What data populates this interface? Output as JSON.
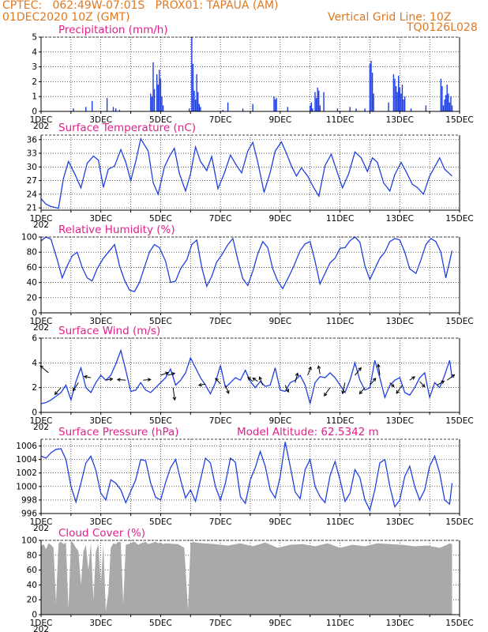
{
  "header": {
    "left1": "CPTEC:   062:49W-07:01S   PROX01: TAPAUA (AM)",
    "left2": "01DEC2020 10Z (GMT)",
    "right1": "Vertical Grid Line: 10Z",
    "right2": "TQ0126L028"
  },
  "x_ticks": [
    "1DEC",
    "3DEC",
    "5DEC",
    "7DEC",
    "9DEC",
    "11DEC",
    "13DEC",
    "15DEC"
  ],
  "year_stub": "202",
  "colors": {
    "header": "#e07820",
    "title": "#e0208a",
    "series": "#2040e0",
    "cloud": "#a9a9a9",
    "arrow": "#000000"
  },
  "chart_data": [
    {
      "type": "bar",
      "title": "Precipitation (mm/h)",
      "ylim": [
        0,
        5
      ],
      "yticks": [
        0,
        1,
        2,
        3,
        4,
        5
      ],
      "x_unit": "hours since 01DEC2020 10Z",
      "bars": [
        [
          26,
          0.2
        ],
        [
          36,
          0.3
        ],
        [
          41,
          0.7
        ],
        [
          53,
          0.9
        ],
        [
          58,
          0.3
        ],
        [
          60,
          0.2
        ],
        [
          63,
          0.1
        ],
        [
          88,
          1.2
        ],
        [
          89,
          1.0
        ],
        [
          90,
          3.3
        ],
        [
          91,
          1.5
        ],
        [
          93,
          2.5
        ],
        [
          94,
          1.8
        ],
        [
          95,
          2.8
        ],
        [
          96,
          2.2
        ],
        [
          97,
          1.0
        ],
        [
          98,
          0.4
        ],
        [
          119,
          0.2
        ],
        [
          121,
          5.0
        ],
        [
          122,
          3.2
        ],
        [
          123,
          1.4
        ],
        [
          124,
          0.8
        ],
        [
          125,
          2.5
        ],
        [
          126,
          1.3
        ],
        [
          127,
          0.5
        ],
        [
          128,
          0.3
        ],
        [
          146,
          0.1
        ],
        [
          150,
          0.6
        ],
        [
          162,
          0.2
        ],
        [
          170,
          0.5
        ],
        [
          187,
          1.0
        ],
        [
          188,
          0.8
        ],
        [
          189,
          0.9
        ],
        [
          198,
          0.3
        ],
        [
          216,
          0.4
        ],
        [
          217,
          0.6
        ],
        [
          218,
          0.2
        ],
        [
          220,
          1.3
        ],
        [
          221,
          0.9
        ],
        [
          222,
          1.6
        ],
        [
          223,
          1.4
        ],
        [
          224,
          0.4
        ],
        [
          227,
          1.3
        ],
        [
          238,
          0.2
        ],
        [
          248,
          0.3
        ],
        [
          253,
          0.2
        ],
        [
          260,
          0.2
        ],
        [
          264,
          3.2
        ],
        [
          265,
          3.4
        ],
        [
          266,
          2.6
        ],
        [
          267,
          1.2
        ],
        [
          279,
          0.6
        ],
        [
          283,
          2.5
        ],
        [
          284,
          2.2
        ],
        [
          285,
          1.7
        ],
        [
          286,
          1.3
        ],
        [
          287,
          2.4
        ],
        [
          288,
          1.6
        ],
        [
          289,
          1.2
        ],
        [
          290,
          1.8
        ],
        [
          291,
          0.8
        ],
        [
          292,
          1.0
        ],
        [
          297,
          0.2
        ],
        [
          309,
          0.4
        ],
        [
          321,
          2.2
        ],
        [
          322,
          1.7
        ],
        [
          323,
          0.4
        ],
        [
          324,
          0.8
        ],
        [
          325,
          1.1
        ],
        [
          326,
          1.8
        ],
        [
          327,
          1.2
        ],
        [
          328,
          0.6
        ],
        [
          329,
          1.0
        ],
        [
          330,
          0.4
        ]
      ]
    },
    {
      "type": "line",
      "title": "Surface Temperature (nC)",
      "ylim": [
        20.5,
        37
      ],
      "yticks": [
        21,
        24,
        27,
        30,
        33,
        36
      ],
      "x": [
        0,
        4,
        8,
        14,
        18,
        22,
        27,
        32,
        37,
        42,
        46,
        50,
        54,
        59,
        64,
        68,
        72,
        76,
        80,
        86,
        90,
        94,
        99,
        103,
        107,
        111,
        116,
        120,
        124,
        128,
        133,
        137,
        142,
        147,
        152,
        157,
        161,
        166,
        170,
        174,
        179,
        184,
        188,
        193,
        197,
        201,
        205,
        209,
        214,
        219,
        223,
        228,
        233,
        237,
        242,
        247,
        252,
        257,
        262,
        266,
        270,
        275,
        280,
        284,
        289,
        293,
        298,
        302,
        307,
        312,
        316,
        320,
        324,
        330
      ],
      "y": [
        23,
        21.8,
        21.3,
        20.9,
        27.5,
        31.2,
        28.5,
        25.4,
        30.8,
        32.4,
        31.5,
        25.5,
        29.5,
        30.2,
        33.8,
        31,
        27,
        31.2,
        36.2,
        33.5,
        26.5,
        24,
        30,
        32.3,
        34.1,
        28.6,
        24.7,
        28.5,
        34.4,
        31.2,
        29.2,
        32.3,
        25.2,
        28.5,
        32.6,
        30.3,
        28.7,
        33.5,
        35.4,
        31,
        24.4,
        28.8,
        33.5,
        35.5,
        33,
        30.2,
        28,
        29.8,
        28,
        25.4,
        23.6,
        30.3,
        32.8,
        29.5,
        25.4,
        28.5,
        33.3,
        32,
        29,
        32,
        31,
        26.5,
        24.7,
        28.3,
        31,
        29,
        26.2,
        25.5,
        24,
        28,
        30,
        32,
        29.5,
        28
      ]
    },
    {
      "type": "line",
      "title": "Relative Humidity (%)",
      "ylim": [
        0,
        100
      ],
      "yticks": [
        0,
        20,
        40,
        60,
        80,
        100
      ],
      "x": [
        0,
        4,
        8,
        13,
        17,
        21,
        25,
        29,
        33,
        37,
        41,
        45,
        50,
        55,
        59,
        63,
        67,
        71,
        75,
        79,
        83,
        87,
        91,
        95,
        100,
        104,
        108,
        112,
        117,
        121,
        125,
        129,
        133,
        137,
        141,
        145,
        150,
        154,
        158,
        162,
        166,
        170,
        174,
        178,
        182,
        186,
        190,
        194,
        199,
        203,
        208,
        212,
        216,
        220,
        224,
        228,
        232,
        236,
        240,
        244,
        248,
        252,
        256,
        260,
        264,
        268,
        272,
        276,
        280,
        284,
        288,
        292,
        296,
        301,
        305,
        309,
        313,
        317,
        321,
        325,
        330
      ],
      "y": [
        95,
        100,
        97,
        70,
        46,
        62,
        75,
        80,
        60,
        46,
        42,
        58,
        72,
        82,
        90,
        62,
        43,
        30,
        28,
        40,
        60,
        80,
        90,
        86,
        68,
        40,
        42,
        58,
        70,
        90,
        96,
        60,
        35,
        48,
        67,
        76,
        90,
        98,
        70,
        45,
        36,
        55,
        78,
        94,
        86,
        58,
        42,
        32,
        48,
        62,
        82,
        91,
        94,
        68,
        38,
        52,
        66,
        72,
        85,
        86,
        95,
        100,
        93,
        62,
        44,
        58,
        72,
        80,
        94,
        98,
        96,
        80,
        58,
        52,
        70,
        90,
        98,
        94,
        80,
        46,
        82
      ]
    },
    {
      "type": "line",
      "title": "Surface Wind (m/s)",
      "ylim": [
        0,
        6
      ],
      "yticks": [
        0,
        2,
        4,
        6
      ],
      "x": [
        0,
        4,
        8,
        12,
        16,
        20,
        24,
        28,
        32,
        36,
        40,
        44,
        48,
        52,
        56,
        60,
        64,
        68,
        72,
        76,
        80,
        84,
        88,
        92,
        96,
        100,
        104,
        108,
        112,
        116,
        120,
        124,
        128,
        132,
        136,
        140,
        144,
        148,
        152,
        156,
        160,
        164,
        168,
        172,
        176,
        180,
        184,
        188,
        192,
        196,
        200,
        204,
        208,
        212,
        216,
        220,
        224,
        228,
        232,
        236,
        240,
        244,
        248,
        252,
        256,
        260,
        264,
        268,
        272,
        276,
        280,
        284,
        288,
        292,
        296,
        300,
        304,
        308,
        312,
        316,
        320,
        324,
        328,
        330
      ],
      "y": [
        0.7,
        0.8,
        1.0,
        1.3,
        1.6,
        2.2,
        1.0,
        2.5,
        3.6,
        2.0,
        1.6,
        2.4,
        3.0,
        2.6,
        3.0,
        3.9,
        5.0,
        3.4,
        1.7,
        1.8,
        2.4,
        1.8,
        1.6,
        2.0,
        2.4,
        2.8,
        3.5,
        2.2,
        2.6,
        3.2,
        4.4,
        3.6,
        2.8,
        2.2,
        1.5,
        2.4,
        3.8,
        2.0,
        2.4,
        2.8,
        2.6,
        3.4,
        2.5,
        2.0,
        2.5,
        2.1,
        2.2,
        3.6,
        1.8,
        1.7,
        2.4,
        2.6,
        3.0,
        2.2,
        0.7,
        2.4,
        2.9,
        2.8,
        3.2,
        2.8,
        2.2,
        1.6,
        2.6,
        4.0,
        2.6,
        1.8,
        2.0,
        4.2,
        2.8,
        1.2,
        2.2,
        2.6,
        2.8,
        1.6,
        1.4,
        2.0,
        2.8,
        3.2,
        1.2,
        2.4,
        2.0,
        3.0,
        4.2,
        2.8
      ],
      "arrows": [
        [
          6,
          3.2,
          -2.0,
          1.0
        ],
        [
          16,
          2.0,
          -1.5,
          -1.0
        ],
        [
          30,
          2.4,
          -1.3,
          -1.2
        ],
        [
          40,
          2.8,
          -1.6,
          0.2
        ],
        [
          52,
          2.6,
          1.6,
          0.2
        ],
        [
          68,
          2.6,
          -2.0,
          0.1
        ],
        [
          82,
          2.6,
          1.8,
          0.1
        ],
        [
          96,
          3.0,
          1.8,
          0.4
        ],
        [
          102,
          3.0,
          1.6,
          0.3
        ],
        [
          106,
          2.0,
          0.4,
          -1.8
        ],
        [
          132,
          2.3,
          -1.6,
          -0.2
        ],
        [
          144,
          2.3,
          -1.2,
          0.8
        ],
        [
          148,
          2.2,
          0.8,
          -1.2
        ],
        [
          170,
          2.5,
          -1.2,
          0.6
        ],
        [
          174,
          2.5,
          -1.2,
          0.5
        ],
        [
          178,
          2.2,
          -0.8,
          1.2
        ],
        [
          196,
          2.2,
          0.8,
          -1.0
        ],
        [
          204,
          2.4,
          0.6,
          1.4
        ],
        [
          214,
          3.0,
          0.8,
          1.2
        ],
        [
          224,
          3.1,
          -0.4,
          1.2
        ],
        [
          232,
          2.0,
          -1.4,
          -1.2
        ],
        [
          244,
          2.4,
          -0.6,
          -1.6
        ],
        [
          252,
          3.0,
          1.5,
          1.1
        ],
        [
          260,
          2.0,
          -1.3,
          -0.9
        ],
        [
          264,
          2.2,
          1.4,
          1.0
        ],
        [
          272,
          3.0,
          -0.4,
          1.6
        ],
        [
          280,
          2.4,
          1.0,
          -0.6
        ],
        [
          290,
          2.2,
          -1.4,
          -1.2
        ],
        [
          296,
          2.6,
          1.2,
          0.5
        ],
        [
          304,
          2.5,
          1.2,
          -0.8
        ],
        [
          318,
          2.2,
          1.7,
          0.6
        ],
        [
          326,
          2.6,
          1.8,
          0.8
        ]
      ]
    },
    {
      "type": "line",
      "title": "Surface Pressure (hPa)",
      "ylim": [
        996,
        1007
      ],
      "yticks": [
        996,
        998,
        1000,
        1002,
        1004,
        1006
      ],
      "annotation": "Model Altitude: 62.5342 m",
      "x": [
        0,
        4,
        8,
        12,
        16,
        20,
        24,
        28,
        32,
        36,
        40,
        44,
        48,
        52,
        56,
        60,
        64,
        68,
        72,
        76,
        80,
        84,
        88,
        92,
        96,
        100,
        104,
        108,
        112,
        116,
        120,
        124,
        128,
        132,
        136,
        140,
        144,
        148,
        152,
        156,
        160,
        164,
        168,
        172,
        176,
        180,
        184,
        188,
        192,
        196,
        200,
        204,
        208,
        212,
        216,
        220,
        224,
        228,
        232,
        236,
        240,
        244,
        248,
        252,
        256,
        260,
        264,
        268,
        272,
        276,
        280,
        284,
        288,
        292,
        296,
        300,
        304,
        308,
        312,
        316,
        320,
        324,
        328,
        330
      ],
      "y": [
        1004.5,
        1004.2,
        1005.0,
        1005.5,
        1005.6,
        1004.0,
        1000.0,
        997.7,
        1000.5,
        1003.5,
        1004.5,
        1002.4,
        999.0,
        998.0,
        1001.0,
        1000.5,
        999.5,
        997.6,
        999.3,
        1001.0,
        1004.0,
        1003.8,
        1000.5,
        998.4,
        998.0,
        1000.6,
        1002.8,
        1004.0,
        1001.0,
        998.3,
        999.5,
        997.8,
        1001.0,
        1004.2,
        1003.5,
        1000.0,
        998.0,
        1000.5,
        1004.2,
        1003.6,
        998.5,
        997.5,
        1001.0,
        1002.8,
        1005.2,
        1003.0,
        999.5,
        998.3,
        1001.5,
        1006.6,
        1003.0,
        999.2,
        998.2,
        1002.5,
        1004.0,
        1000.0,
        998.5,
        997.6,
        1001.6,
        1003.7,
        1001.0,
        997.8,
        999.0,
        1002.5,
        1001.3,
        998.0,
        996.5,
        999.5,
        1003.5,
        1004.0,
        1000.0,
        997.0,
        998.0,
        1001.5,
        1003.0,
        1000.0,
        998.0,
        999.5,
        1003.0,
        1004.5,
        1002.0,
        998.0,
        997.4,
        1000.5
      ]
    },
    {
      "type": "area",
      "title": "Cloud Cover (%)",
      "ylim": [
        0,
        100
      ],
      "yticks": [
        0,
        20,
        40,
        60,
        80,
        100
      ],
      "x": [
        0,
        2,
        4,
        6,
        8,
        10,
        12,
        14,
        16,
        18,
        20,
        22,
        24,
        26,
        28,
        30,
        32,
        34,
        36,
        38,
        40,
        42,
        44,
        46,
        48,
        50,
        52,
        54,
        56,
        58,
        60,
        62,
        64,
        66,
        68,
        70,
        72,
        74,
        76,
        78,
        80,
        82,
        84,
        86,
        88,
        90,
        92,
        94,
        96,
        98,
        100,
        110,
        115,
        118,
        120,
        122,
        124,
        130,
        140,
        150,
        160,
        170,
        180,
        190,
        200,
        210,
        220,
        230,
        240,
        250,
        260,
        270,
        280,
        290,
        300,
        310,
        320,
        326,
        328,
        330
      ],
      "y": [
        92,
        95,
        88,
        96,
        94,
        90,
        15,
        96,
        98,
        95,
        97,
        8,
        100,
        96,
        90,
        86,
        40,
        85,
        94,
        60,
        97,
        20,
        85,
        95,
        40,
        95,
        5,
        30,
        90,
        96,
        95,
        98,
        97,
        15,
        94,
        95,
        96,
        98,
        97,
        94,
        96,
        97,
        98,
        95,
        96,
        97,
        98,
        96,
        97,
        95,
        96,
        95,
        90,
        6,
        96,
        98,
        97,
        96,
        95,
        93,
        96,
        92,
        97,
        90,
        94,
        95,
        92,
        96,
        90,
        94,
        92,
        96,
        95,
        94,
        92,
        93,
        90,
        94,
        96,
        95
      ]
    }
  ]
}
